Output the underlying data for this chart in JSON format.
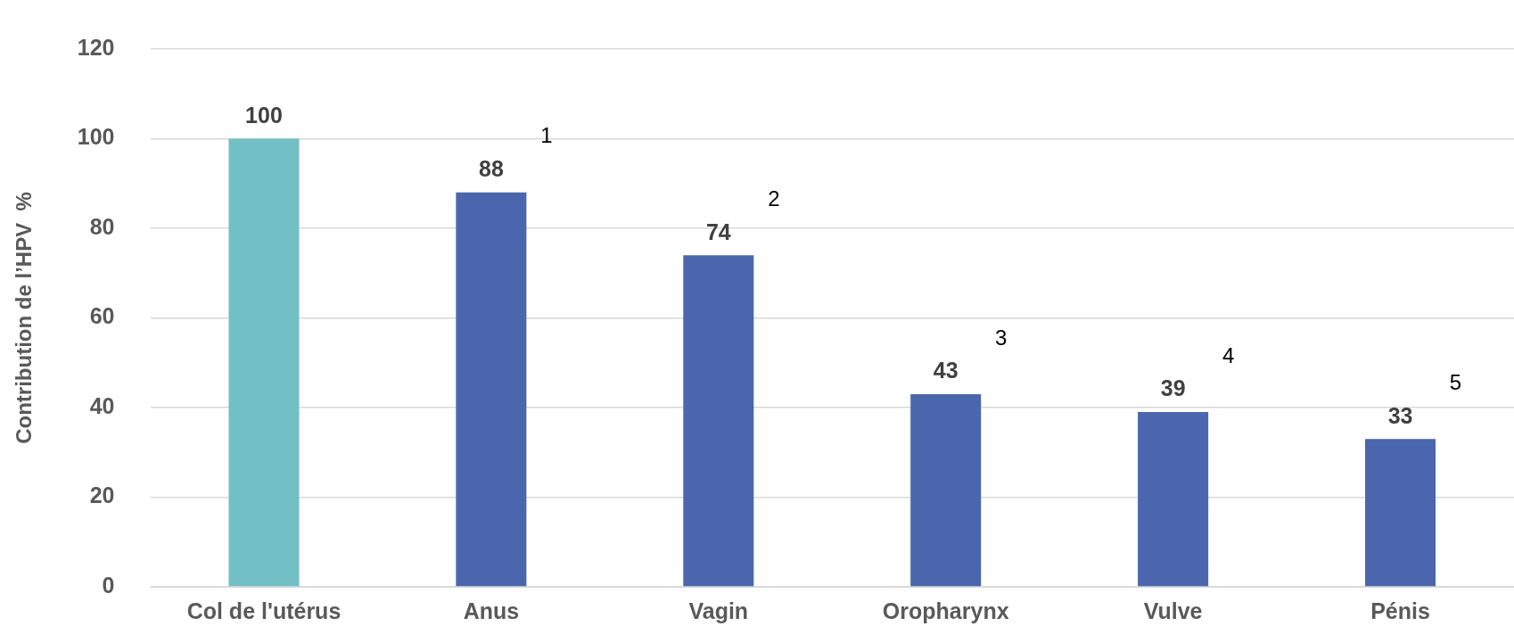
{
  "chart_data": {
    "type": "bar",
    "ylabel": "Contribution de l’HPV  %",
    "categories": [
      "Col de l'utérus",
      "Anus",
      "Vagin",
      "Oropharynx",
      "Vulve",
      "Pénis"
    ],
    "values": [
      100,
      88,
      74,
      43,
      39,
      33
    ],
    "colors": [
      "#72bfc5",
      "#4a66ac",
      "#4a66ac",
      "#4a66ac",
      "#4a66ac",
      "#4a66ac"
    ],
    "ylim": [
      0,
      120
    ],
    "yticks": [
      0,
      20,
      40,
      60,
      80,
      100,
      120
    ],
    "grid": "y",
    "data_labels": true,
    "legend": false,
    "annotations": [
      "1",
      "2",
      "3",
      "4",
      "5"
    ]
  }
}
